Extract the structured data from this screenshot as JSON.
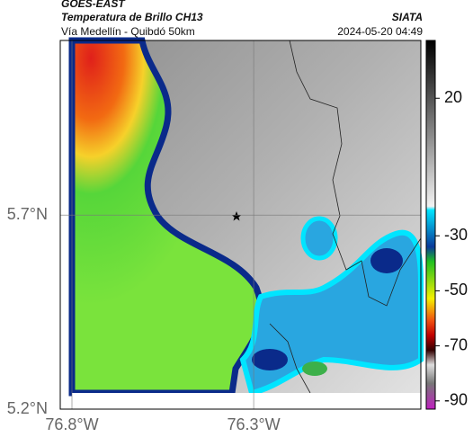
{
  "header": {
    "source": "GOES-EAST",
    "title": "Temperatura de Brillo CH13",
    "subtitle": "Vía Medellín - Quibdó 50km",
    "agency": "SIATA",
    "datetime": "2024-05-20 04:49"
  },
  "map": {
    "xlim": [
      -76.8,
      -75.84
    ],
    "ylim": [
      5.2,
      6.15
    ],
    "xticks": [
      {
        "value": -76.8,
        "label": "76.8°W"
      },
      {
        "value": -76.3,
        "label": "76.3°W"
      }
    ],
    "yticks": [
      {
        "value": 5.7,
        "label": "5.7°N"
      },
      {
        "value": 5.2,
        "label": "5.2°N"
      }
    ]
  },
  "colorbar": {
    "lim": [
      -93,
      41
    ],
    "ticks": [
      20,
      -30,
      -50,
      -70,
      -90
    ]
  }
}
